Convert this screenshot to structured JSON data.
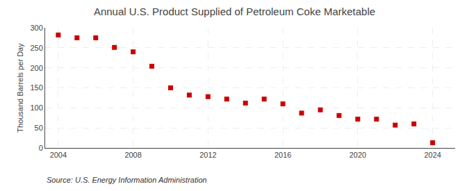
{
  "chart_data": {
    "type": "scatter",
    "title": "Annual U.S. Product Supplied of Petroleum Coke Marketable",
    "y_label": "Thousand Barrels per Day",
    "annotations": [
      "Source: U.S. Energy Information Administration"
    ],
    "x": [
      2004,
      2005,
      2006,
      2007,
      2008,
      2009,
      2010,
      2011,
      2012,
      2013,
      2014,
      2015,
      2016,
      2017,
      2018,
      2019,
      2020,
      2021,
      2022,
      2023,
      2024
    ],
    "values": [
      282,
      275,
      275,
      251,
      240,
      204,
      150,
      132,
      128,
      122,
      112,
      122,
      110,
      87,
      95,
      81,
      72,
      72,
      57,
      60,
      13
    ],
    "color": "#cc0000",
    "marker": "square",
    "xlim": [
      2003.3,
      2025.2
    ],
    "xticks": [
      2004,
      2008,
      2012,
      2016,
      2020,
      2024
    ],
    "ylim": [
      0,
      300
    ],
    "yticks": [
      0,
      50,
      100,
      150,
      200,
      250,
      300
    ],
    "grid": true
  }
}
